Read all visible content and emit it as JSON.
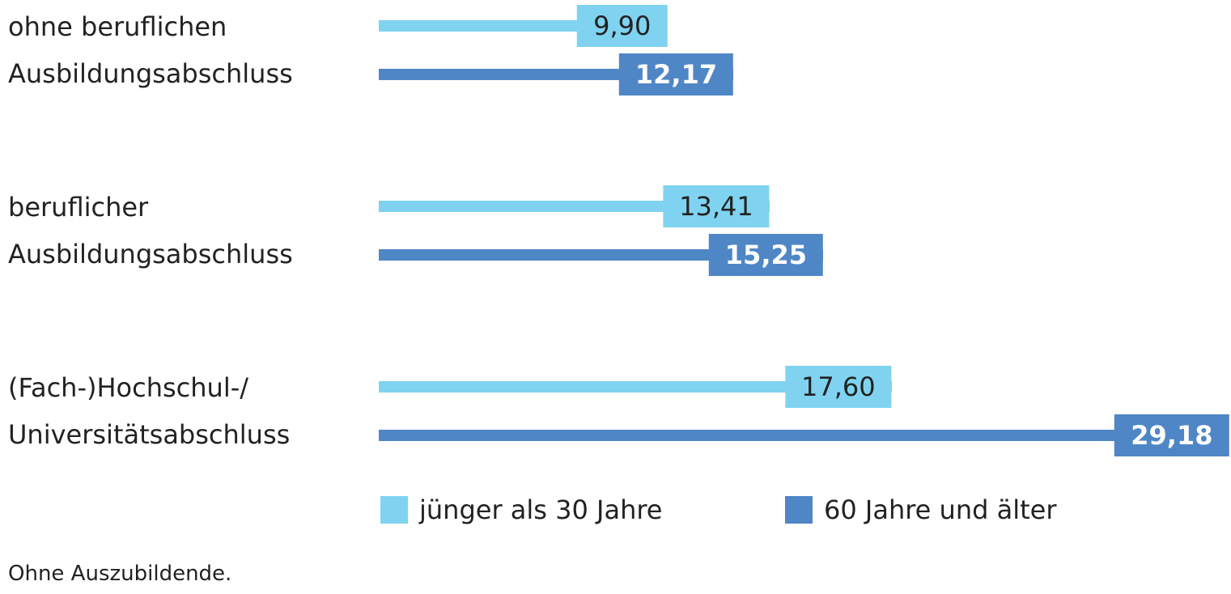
{
  "chart_data": {
    "type": "bar",
    "orientation": "horizontal",
    "categories": [
      "ohne beruflichen\nAusbildungsabschluss",
      "beruflicher\nAusbildungsabschluss",
      "(Fach-)Hochschul-/\nUniversitätsabschluss"
    ],
    "series": [
      {
        "name": "jünger als 30 Jahre",
        "color": "#7fd3f0",
        "values": [
          9.9,
          13.41,
          17.6
        ],
        "value_labels": [
          "9,90",
          "13,41",
          "17,60"
        ]
      },
      {
        "name": "60 Jahre und älter",
        "color": "#4f86c6",
        "values": [
          12.17,
          15.25,
          29.18
        ],
        "value_labels": [
          "12,17",
          "15,25",
          "29,18"
        ]
      }
    ],
    "note": "Ohne Auszubildende."
  }
}
